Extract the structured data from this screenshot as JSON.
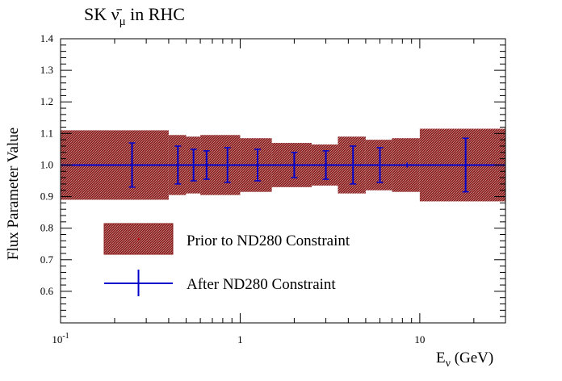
{
  "chart_data": {
    "type": "line",
    "title": "SK ν̄μ in RHC",
    "xlabel": "Eν (GeV)",
    "ylabel": "Flux Parameter Value",
    "xscale": "log",
    "xlim": [
      0.1,
      30
    ],
    "ylim": [
      0.5,
      1.4
    ],
    "x_ticks": [
      {
        "value": 0.1,
        "label": "10",
        "sup": "-1"
      },
      {
        "value": 1,
        "label": "1",
        "sup": ""
      },
      {
        "value": 10,
        "label": "10",
        "sup": ""
      }
    ],
    "y_ticks": [
      {
        "value": 0.6,
        "label": "0.6"
      },
      {
        "value": 0.7,
        "label": "0.7"
      },
      {
        "value": 0.8,
        "label": "0.8"
      },
      {
        "value": 0.9,
        "label": "0.9"
      },
      {
        "value": 1.0,
        "label": "1.0"
      },
      {
        "value": 1.1,
        "label": "1.1"
      },
      {
        "value": 1.2,
        "label": "1.2"
      },
      {
        "value": 1.3,
        "label": "1.3"
      },
      {
        "value": 1.4,
        "label": "1.4"
      }
    ],
    "grid": false,
    "legend_position": "bottom-left",
    "series": [
      {
        "name": "Prior to ND280 Constraint",
        "kind": "band",
        "color": "#8b1a1a",
        "bins": [
          {
            "lo": 0.1,
            "hi": 0.4,
            "value": 1.0,
            "error": 0.11
          },
          {
            "lo": 0.4,
            "hi": 0.5,
            "value": 1.0,
            "error": 0.095
          },
          {
            "lo": 0.5,
            "hi": 0.6,
            "value": 1.0,
            "error": 0.09
          },
          {
            "lo": 0.6,
            "hi": 0.7,
            "value": 1.0,
            "error": 0.095
          },
          {
            "lo": 0.7,
            "hi": 1.0,
            "value": 1.0,
            "error": 0.095
          },
          {
            "lo": 1.0,
            "hi": 1.5,
            "value": 1.0,
            "error": 0.085
          },
          {
            "lo": 1.5,
            "hi": 2.5,
            "value": 1.0,
            "error": 0.07
          },
          {
            "lo": 2.5,
            "hi": 3.5,
            "value": 1.0,
            "error": 0.065
          },
          {
            "lo": 3.5,
            "hi": 5.0,
            "value": 1.0,
            "error": 0.09
          },
          {
            "lo": 5.0,
            "hi": 7.0,
            "value": 1.0,
            "error": 0.08
          },
          {
            "lo": 7.0,
            "hi": 10.0,
            "value": 1.0,
            "error": 0.085
          },
          {
            "lo": 10.0,
            "hi": 30.0,
            "value": 1.0,
            "error": 0.115
          }
        ]
      },
      {
        "name": "After ND280 Constraint",
        "kind": "errorbar",
        "color": "#0000cc",
        "bins": [
          {
            "lo": 0.1,
            "hi": 0.4,
            "x": 0.25,
            "value": 1.0,
            "error": 0.07
          },
          {
            "lo": 0.4,
            "hi": 0.5,
            "x": 0.45,
            "value": 1.0,
            "error": 0.06
          },
          {
            "lo": 0.5,
            "hi": 0.6,
            "x": 0.55,
            "value": 1.0,
            "error": 0.05
          },
          {
            "lo": 0.6,
            "hi": 0.7,
            "x": 0.65,
            "value": 1.0,
            "error": 0.045
          },
          {
            "lo": 0.7,
            "hi": 1.0,
            "x": 0.85,
            "value": 1.0,
            "error": 0.055
          },
          {
            "lo": 1.0,
            "hi": 1.5,
            "x": 1.25,
            "value": 1.0,
            "error": 0.05
          },
          {
            "lo": 1.5,
            "hi": 2.5,
            "x": 2.0,
            "value": 1.0,
            "error": 0.04
          },
          {
            "lo": 2.5,
            "hi": 3.5,
            "x": 3.0,
            "value": 1.0,
            "error": 0.045
          },
          {
            "lo": 3.5,
            "hi": 5.0,
            "x": 4.25,
            "value": 1.0,
            "error": 0.06
          },
          {
            "lo": 5.0,
            "hi": 7.0,
            "x": 6.0,
            "value": 1.0,
            "error": 0.055
          },
          {
            "lo": 7.0,
            "hi": 10.0,
            "x": 8.5,
            "value": 1.0,
            "error": 0.0
          },
          {
            "lo": 10.0,
            "hi": 30.0,
            "x": 18.0,
            "value": 1.0,
            "error": 0.085
          }
        ]
      }
    ]
  }
}
